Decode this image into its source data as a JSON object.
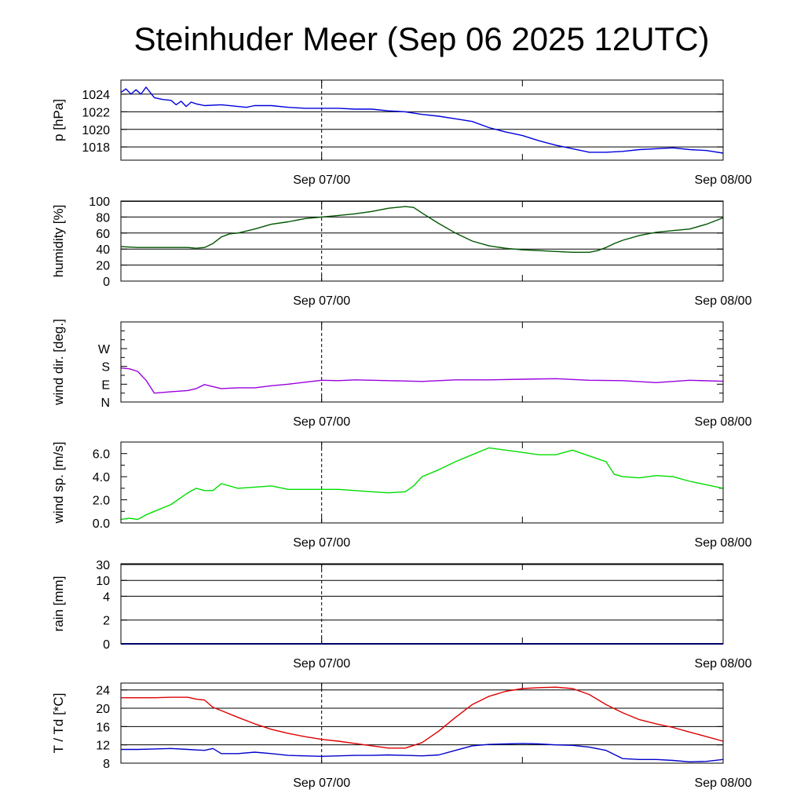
{
  "title": "Steinhuder Meer (Sep 06 2025 12UTC)",
  "colors": {
    "pressure": "#0000dd",
    "humidity": "#005500",
    "wind_dir": "#9900dd",
    "wind_speed": "#00dd00",
    "temp": "#dd0000",
    "dewpoint": "#0000cc"
  },
  "chart_data": [
    {
      "id": "pressure",
      "type": "line",
      "ylabel": "p [hPa]",
      "ylim": [
        1016.5,
        1025.6
      ],
      "yticks": [
        {
          "v": 1018,
          "label": "1018"
        },
        {
          "v": 1020,
          "label": "1020"
        },
        {
          "v": 1022,
          "label": "1022"
        },
        {
          "v": 1024,
          "label": "1024"
        }
      ],
      "xticks": [
        {
          "v": 12,
          "label": "Sep 07/00"
        },
        {
          "v": 36,
          "label": "Sep 08/00"
        }
      ],
      "xlim": [
        0,
        36
      ],
      "series": [
        {
          "color": "#0000dd",
          "x": [
            0,
            0.3,
            0.6,
            0.9,
            1.2,
            1.5,
            2,
            2.5,
            3,
            3.3,
            3.6,
            3.9,
            4.2,
            4.5,
            5,
            6,
            7,
            7.5,
            8,
            9,
            10,
            11,
            12,
            13,
            14,
            15,
            16,
            17,
            18,
            19,
            20,
            21,
            22,
            23,
            24,
            25,
            26,
            27,
            28,
            29,
            30,
            31,
            32,
            33,
            34,
            35,
            36
          ],
          "y": [
            1024.2,
            1024.6,
            1024.0,
            1024.5,
            1024.0,
            1024.8,
            1023.6,
            1023.4,
            1023.3,
            1022.8,
            1023.2,
            1022.6,
            1023.1,
            1022.9,
            1022.7,
            1022.8,
            1022.6,
            1022.5,
            1022.7,
            1022.7,
            1022.5,
            1022.4,
            1022.4,
            1022.4,
            1022.3,
            1022.3,
            1022.1,
            1022.0,
            1021.7,
            1021.5,
            1021.2,
            1020.9,
            1020.2,
            1019.7,
            1019.3,
            1018.7,
            1018.2,
            1017.8,
            1017.4,
            1017.4,
            1017.5,
            1017.7,
            1017.8,
            1017.9,
            1017.7,
            1017.6,
            1017.3
          ]
        }
      ]
    },
    {
      "id": "humidity",
      "type": "line",
      "ylabel": "humidity [%]",
      "ylim": [
        0,
        100
      ],
      "yticks": [
        {
          "v": 0,
          "label": "0"
        },
        {
          "v": 20,
          "label": "20"
        },
        {
          "v": 40,
          "label": "40"
        },
        {
          "v": 60,
          "label": "60"
        },
        {
          "v": 80,
          "label": "80"
        },
        {
          "v": 100,
          "label": "100"
        }
      ],
      "xticks": [
        {
          "v": 12,
          "label": "Sep 07/00"
        },
        {
          "v": 36,
          "label": "Sep 08/00"
        }
      ],
      "xlim": [
        0,
        36
      ],
      "series": [
        {
          "color": "#005500",
          "x": [
            0,
            1,
            2,
            3,
            4,
            4.5,
            5,
            5.5,
            6,
            6.5,
            7,
            8,
            9,
            10,
            11,
            12,
            13,
            14,
            15,
            16,
            17,
            17.5,
            18,
            19,
            20,
            21,
            22,
            23,
            24,
            25,
            26,
            27,
            28,
            28.5,
            29,
            29.5,
            30,
            31,
            32,
            33,
            34,
            35,
            36
          ],
          "y": [
            43,
            42,
            42,
            42,
            42,
            41,
            42,
            47,
            55,
            59,
            60,
            65,
            71,
            74,
            78,
            80,
            82,
            84,
            87,
            91,
            93,
            92,
            85,
            72,
            60,
            50,
            44,
            41,
            39,
            38,
            37,
            36,
            36,
            38,
            42,
            47,
            51,
            57,
            61,
            63,
            65,
            71,
            79
          ]
        }
      ]
    },
    {
      "id": "wind_dir",
      "type": "line",
      "ylabel": "wind dir. [deg.]",
      "ylim": [
        0,
        405
      ],
      "yticks": [
        {
          "v": 0,
          "label": "N"
        },
        {
          "v": 90,
          "label": "E"
        },
        {
          "v": 180,
          "label": "S"
        },
        {
          "v": 270,
          "label": "W"
        }
      ],
      "xticks": [
        {
          "v": 12,
          "label": "Sep 07/00"
        },
        {
          "v": 36,
          "label": "Sep 08/00"
        }
      ],
      "xlim": [
        0,
        36
      ],
      "series": [
        {
          "color": "#9900dd",
          "x": [
            0,
            0.5,
            1,
            1.5,
            2,
            3,
            4,
            4.5,
            5,
            6,
            7,
            8,
            9,
            10,
            11,
            12,
            13,
            14,
            16,
            18,
            20,
            22,
            24,
            26,
            28,
            30,
            32,
            34,
            36
          ],
          "y": [
            172,
            168,
            155,
            110,
            45,
            52,
            58,
            68,
            88,
            68,
            72,
            72,
            82,
            90,
            100,
            110,
            108,
            112,
            108,
            104,
            112,
            112,
            115,
            118,
            110,
            108,
            98,
            110,
            105
          ]
        }
      ]
    },
    {
      "id": "wind_speed",
      "type": "line",
      "ylabel": "wind sp. [m/s]",
      "ylim": [
        0,
        7
      ],
      "yticks": [
        {
          "v": 0,
          "label": "0.0"
        },
        {
          "v": 2,
          "label": "2.0"
        },
        {
          "v": 4,
          "label": "4.0"
        },
        {
          "v": 6,
          "label": "6.0"
        }
      ],
      "xticks": [
        {
          "v": 12,
          "label": "Sep 07/00"
        },
        {
          "v": 36,
          "label": "Sep 08/00"
        }
      ],
      "xlim": [
        0,
        36
      ],
      "series": [
        {
          "color": "#00dd00",
          "x": [
            0,
            0.5,
            1,
            1.5,
            2,
            3,
            4,
            4.5,
            5,
            5.5,
            6,
            7,
            8,
            9,
            10,
            11,
            12,
            13,
            14,
            15,
            16,
            17,
            17.5,
            18,
            19,
            20,
            21,
            22,
            23,
            24,
            25,
            26,
            27,
            28,
            29,
            29.5,
            30,
            31,
            32,
            33,
            34,
            35,
            36
          ],
          "y": [
            0.3,
            0.4,
            0.3,
            0.7,
            1.0,
            1.6,
            2.6,
            3.0,
            2.8,
            2.8,
            3.4,
            3.0,
            3.1,
            3.2,
            2.9,
            2.9,
            2.9,
            2.9,
            2.8,
            2.7,
            2.6,
            2.7,
            3.2,
            4.0,
            4.6,
            5.3,
            5.9,
            6.5,
            6.3,
            6.1,
            5.9,
            5.9,
            6.3,
            5.8,
            5.3,
            4.2,
            4.0,
            3.9,
            4.1,
            4.0,
            3.6,
            3.3,
            3.0
          ]
        }
      ]
    },
    {
      "id": "rain",
      "type": "line",
      "ylabel": "rain [mm]",
      "ylim": [
        0,
        32
      ],
      "yticks": [
        {
          "v": 0,
          "label": "0"
        },
        {
          "v": 2,
          "label": "2"
        },
        {
          "v": 4,
          "label": "4"
        },
        {
          "v": 10,
          "label": "10"
        },
        {
          "v": 30,
          "label": "30"
        }
      ],
      "xticks": [
        {
          "v": 12,
          "label": "Sep 07/00"
        },
        {
          "v": 36,
          "label": "Sep 08/00"
        }
      ],
      "xlim": [
        0,
        36
      ],
      "series": [
        {
          "color": "#0000cc",
          "x": [
            0,
            36
          ],
          "y": [
            0,
            0
          ]
        }
      ]
    },
    {
      "id": "temp",
      "type": "line",
      "ylabel": "T / Td [*C]",
      "ylim": [
        8,
        25.5
      ],
      "yticks": [
        {
          "v": 8,
          "label": "8"
        },
        {
          "v": 12,
          "label": "12"
        },
        {
          "v": 16,
          "label": "16"
        },
        {
          "v": 20,
          "label": "20"
        },
        {
          "v": 24,
          "label": "24"
        }
      ],
      "xticks": [
        {
          "v": 12,
          "label": "Sep 07/00"
        },
        {
          "v": 36,
          "label": "Sep 08/00"
        }
      ],
      "xlim": [
        0,
        36
      ],
      "series": [
        {
          "color": "#dd0000",
          "x": [
            0,
            1,
            2,
            3,
            4,
            4.5,
            5,
            5.5,
            6,
            7,
            8,
            9,
            10,
            11,
            12,
            13,
            14,
            15,
            16,
            17,
            18,
            19,
            20,
            21,
            22,
            23,
            24,
            25,
            26,
            27,
            28,
            29,
            30,
            31,
            32,
            33,
            34,
            35,
            36
          ],
          "y": [
            22.3,
            22.3,
            22.3,
            22.4,
            22.4,
            22.0,
            21.8,
            20.2,
            19.5,
            18.0,
            16.6,
            15.4,
            14.5,
            13.8,
            13.2,
            12.8,
            12.3,
            11.8,
            11.3,
            11.3,
            12.5,
            15.0,
            18.0,
            20.8,
            22.6,
            23.7,
            24.3,
            24.5,
            24.6,
            24.3,
            23.0,
            20.8,
            19.0,
            17.5,
            16.6,
            15.8,
            14.8,
            13.8,
            12.8
          ]
        },
        {
          "color": "#0000cc",
          "x": [
            0,
            1,
            2,
            3,
            4,
            5,
            5.5,
            6,
            7,
            8,
            9,
            10,
            11,
            12,
            13,
            14,
            15,
            16,
            17,
            18,
            19,
            20,
            21,
            22,
            23,
            24,
            25,
            26,
            27,
            28,
            29,
            30,
            31,
            32,
            33,
            34,
            35,
            36
          ],
          "y": [
            11.0,
            11.0,
            11.1,
            11.2,
            11.0,
            10.8,
            11.2,
            10.1,
            10.1,
            10.4,
            10.1,
            9.7,
            9.6,
            9.5,
            9.6,
            9.7,
            9.7,
            9.8,
            9.7,
            9.6,
            9.8,
            10.8,
            11.8,
            12.1,
            12.2,
            12.3,
            12.2,
            12.0,
            11.9,
            11.5,
            10.8,
            9.0,
            8.8,
            8.8,
            8.6,
            8.3,
            8.4,
            8.8
          ]
        }
      ]
    }
  ]
}
